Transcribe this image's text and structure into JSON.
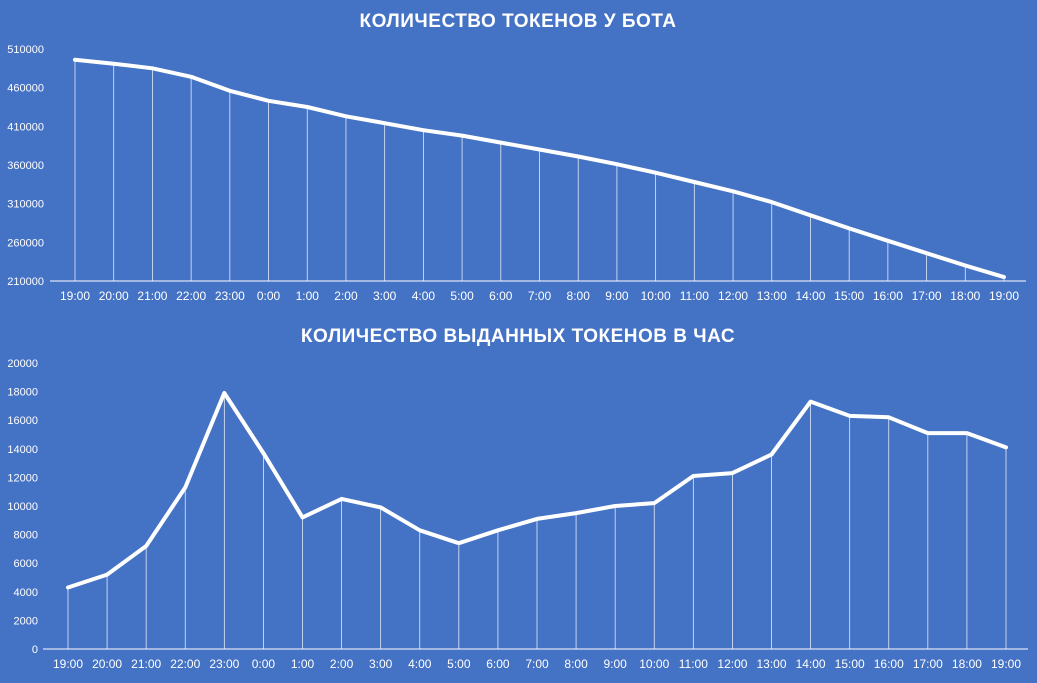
{
  "background": "#4472c4",
  "line_color": "#ffffff",
  "chart_data": [
    {
      "type": "line",
      "title": "КОЛИЧЕСТВО ТОКЕНОВ У БОТА",
      "xlabel": "",
      "ylabel": "",
      "categories": [
        "19:00",
        "20:00",
        "21:00",
        "22:00",
        "23:00",
        "0:00",
        "1:00",
        "2:00",
        "3:00",
        "4:00",
        "5:00",
        "6:00",
        "7:00",
        "8:00",
        "9:00",
        "10:00",
        "11:00",
        "12:00",
        "13:00",
        "14:00",
        "15:00",
        "16:00",
        "17:00",
        "18:00",
        "19:00"
      ],
      "values": [
        496000,
        491000,
        485000,
        474000,
        456000,
        443000,
        435000,
        423000,
        414000,
        405000,
        398000,
        389000,
        380000,
        371000,
        361000,
        350000,
        338000,
        326000,
        312000,
        295000,
        278000,
        262000,
        246000,
        230000,
        215000
      ],
      "ylim": [
        210000,
        510000
      ],
      "yticks": [
        "510000",
        "460000",
        "410000",
        "360000",
        "310000",
        "260000",
        "210000"
      ],
      "ytick_values": [
        510000,
        460000,
        410000,
        360000,
        310000,
        260000,
        210000
      ],
      "drop_lines": true,
      "legend": "none"
    },
    {
      "type": "line",
      "title": "КОЛИЧЕСТВО ВЫДАННЫХ ТОКЕНОВ В ЧАС",
      "xlabel": "",
      "ylabel": "",
      "categories": [
        "19:00",
        "20:00",
        "21:00",
        "22:00",
        "23:00",
        "0:00",
        "1:00",
        "2:00",
        "3:00",
        "4:00",
        "5:00",
        "6:00",
        "7:00",
        "8:00",
        "9:00",
        "10:00",
        "11:00",
        "12:00",
        "13:00",
        "14:00",
        "15:00",
        "16:00",
        "17:00",
        "18:00",
        "19:00"
      ],
      "values": [
        4300,
        5200,
        7200,
        11300,
        17900,
        13700,
        9200,
        10500,
        9900,
        8300,
        7400,
        8300,
        9100,
        9500,
        10000,
        10200,
        12100,
        12300,
        13600,
        17300,
        16300,
        16200,
        15100,
        15100,
        14100
      ],
      "ylim": [
        0,
        20000
      ],
      "yticks": [
        "20000",
        "18000",
        "16000",
        "14000",
        "12000",
        "10000",
        "8000",
        "6000",
        "4000",
        "2000",
        "0"
      ],
      "ytick_values": [
        20000,
        18000,
        16000,
        14000,
        12000,
        10000,
        8000,
        6000,
        4000,
        2000,
        0
      ],
      "drop_lines": true,
      "legend": "none"
    }
  ]
}
